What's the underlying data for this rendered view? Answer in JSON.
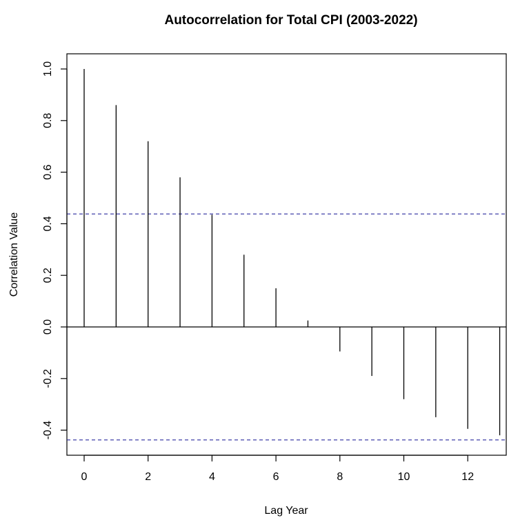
{
  "chart_data": {
    "type": "bar",
    "title": "Autocorrelation for Total CPI (2003-2022)",
    "xlabel": "Lag Year",
    "ylabel": "Correlation Value",
    "xlim": [
      -0.5,
      13
    ],
    "ylim": [
      -0.5,
      1.06
    ],
    "x_ticks": [
      0,
      2,
      4,
      6,
      8,
      10,
      12
    ],
    "y_ticks": [
      -0.4,
      -0.2,
      0.0,
      0.2,
      0.4,
      0.6,
      0.8,
      1.0
    ],
    "y_tick_labels": [
      "-0.4",
      "-0.2",
      "0.0",
      "0.2",
      "0.4",
      "0.6",
      "0.8",
      "1.0"
    ],
    "lags": [
      0,
      1,
      2,
      3,
      4,
      5,
      6,
      7,
      8,
      9,
      10,
      11,
      12,
      13
    ],
    "values": [
      1.0,
      0.86,
      0.72,
      0.58,
      0.435,
      0.28,
      0.15,
      0.025,
      -0.095,
      -0.19,
      -0.28,
      -0.35,
      -0.395,
      -0.42
    ],
    "confidence_bounds": [
      0.438,
      -0.438
    ],
    "grid": false,
    "colors": {
      "spikes": "#000000",
      "confidence": "#2a2a9e",
      "zero_line": "#000000"
    }
  }
}
